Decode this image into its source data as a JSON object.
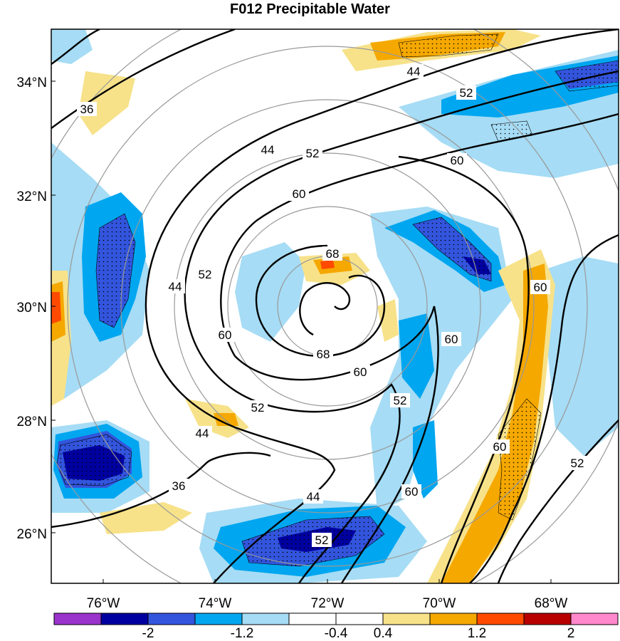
{
  "title": "F012 Precipitable Water",
  "latitude_labels": [
    "34°N",
    "32°N",
    "30°N",
    "28°N",
    "26°N"
  ],
  "longitude_labels": [
    "76°W",
    "74°W",
    "72°W",
    "70°W",
    "68°W"
  ],
  "contour_labels": [
    "36",
    "44",
    "52",
    "60",
    "68"
  ],
  "colorbar": {
    "tick_labels": [
      "-2",
      "-1.2",
      "-0.4",
      "0.4",
      "1.2",
      "2"
    ],
    "colors": [
      "#9933cc",
      "#0000a0",
      "#3355dd",
      "#00a6f0",
      "#a6dcf5",
      "#ffffff",
      "#ffffff",
      "#f7e28a",
      "#f5a800",
      "#ff4a00",
      "#b80000",
      "#ff88cc"
    ]
  },
  "shading_colors": {
    "neg_strong": "#0000a0",
    "neg_mid": "#3355dd",
    "neg_light": "#00a6f0",
    "neg_faint": "#a6dcf5",
    "pos_faint": "#f7e28a",
    "pos_mid": "#f5a800",
    "pos_strong": "#ff4a00",
    "contour": "#000000",
    "range_ring": "#999999"
  }
}
